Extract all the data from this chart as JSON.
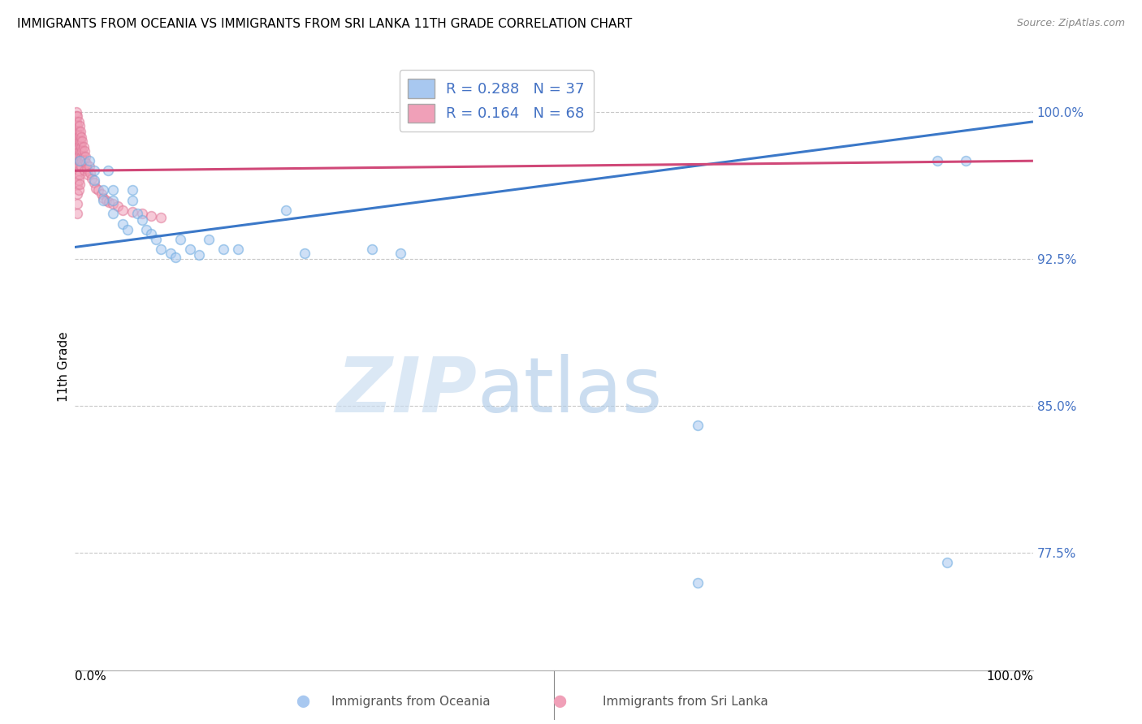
{
  "title": "IMMIGRANTS FROM OCEANIA VS IMMIGRANTS FROM SRI LANKA 11TH GRADE CORRELATION CHART",
  "source": "Source: ZipAtlas.com",
  "ylabel": "11th Grade",
  "xlim": [
    0.0,
    1.0
  ],
  "ylim": [
    0.715,
    1.025
  ],
  "yticks": [
    0.775,
    0.85,
    0.925,
    1.0
  ],
  "ytick_labels": [
    "77.5%",
    "85.0%",
    "92.5%",
    "100.0%"
  ],
  "oceania_color": "#A8C8F0",
  "srilanka_color": "#F0A0B8",
  "oceania_edge_color": "#6AAAE0",
  "srilanka_edge_color": "#E07898",
  "oceania_line_color": "#3B78C8",
  "srilanka_line_color": "#D04878",
  "legend_R_oceania": "R = 0.288",
  "legend_N_oceania": "N = 37",
  "legend_R_srilanka": "R = 0.164",
  "legend_N_srilanka": "N = 68",
  "oceania_x": [
    0.005,
    0.015,
    0.02,
    0.02,
    0.03,
    0.03,
    0.035,
    0.04,
    0.04,
    0.04,
    0.05,
    0.055,
    0.06,
    0.06,
    0.065,
    0.07,
    0.075,
    0.08,
    0.085,
    0.09,
    0.1,
    0.105,
    0.11,
    0.12,
    0.13,
    0.14,
    0.155,
    0.17,
    0.22,
    0.24,
    0.31,
    0.34,
    0.65,
    0.65,
    0.9,
    0.91,
    0.93
  ],
  "oceania_y": [
    0.975,
    0.975,
    0.97,
    0.965,
    0.96,
    0.955,
    0.97,
    0.96,
    0.955,
    0.948,
    0.943,
    0.94,
    0.96,
    0.955,
    0.948,
    0.945,
    0.94,
    0.938,
    0.935,
    0.93,
    0.928,
    0.926,
    0.935,
    0.93,
    0.927,
    0.935,
    0.93,
    0.93,
    0.95,
    0.928,
    0.93,
    0.928,
    0.84,
    0.76,
    0.975,
    0.77,
    0.975
  ],
  "srilanka_x": [
    0.002,
    0.002,
    0.002,
    0.002,
    0.002,
    0.003,
    0.003,
    0.003,
    0.003,
    0.003,
    0.003,
    0.003,
    0.003,
    0.003,
    0.003,
    0.003,
    0.004,
    0.004,
    0.004,
    0.004,
    0.004,
    0.004,
    0.004,
    0.004,
    0.005,
    0.005,
    0.005,
    0.005,
    0.005,
    0.005,
    0.005,
    0.006,
    0.006,
    0.006,
    0.006,
    0.007,
    0.007,
    0.007,
    0.007,
    0.008,
    0.008,
    0.008,
    0.009,
    0.009,
    0.01,
    0.01,
    0.01,
    0.011,
    0.012,
    0.013,
    0.014,
    0.015,
    0.016,
    0.018,
    0.02,
    0.022,
    0.025,
    0.028,
    0.03,
    0.033,
    0.036,
    0.04,
    0.045,
    0.05,
    0.06,
    0.07,
    0.08,
    0.09
  ],
  "srilanka_y": [
    1.0,
    0.998,
    0.995,
    0.99,
    0.985,
    0.998,
    0.993,
    0.988,
    0.983,
    0.978,
    0.973,
    0.968,
    0.963,
    0.958,
    0.953,
    0.948,
    0.995,
    0.99,
    0.985,
    0.98,
    0.975,
    0.97,
    0.965,
    0.96,
    0.993,
    0.988,
    0.983,
    0.978,
    0.973,
    0.968,
    0.963,
    0.99,
    0.985,
    0.98,
    0.975,
    0.987,
    0.982,
    0.977,
    0.972,
    0.985,
    0.98,
    0.975,
    0.982,
    0.977,
    0.98,
    0.975,
    0.97,
    0.977,
    0.974,
    0.971,
    0.968,
    0.972,
    0.969,
    0.966,
    0.964,
    0.961,
    0.96,
    0.958,
    0.956,
    0.955,
    0.954,
    0.953,
    0.952,
    0.95,
    0.949,
    0.948,
    0.947,
    0.946
  ],
  "oceania_line_x": [
    0.0,
    1.0
  ],
  "oceania_line_y": [
    0.931,
    0.995
  ],
  "srilanka_line_x": [
    0.0,
    1.0
  ],
  "srilanka_line_y": [
    0.97,
    0.975
  ],
  "watermark_zip": "ZIP",
  "watermark_atlas": "atlas",
  "background_color": "#FFFFFF",
  "title_fontsize": 11,
  "marker_size": 72,
  "marker_alpha": 0.55,
  "line_width": 2.2
}
